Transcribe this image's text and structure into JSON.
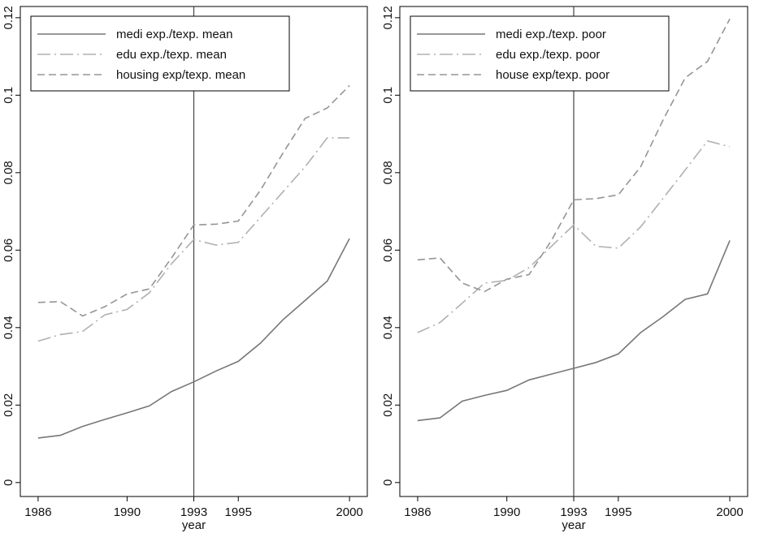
{
  "chart_data": [
    {
      "type": "line",
      "x": [
        1986,
        1987,
        1988,
        1989,
        1990,
        1991,
        1992,
        1993,
        1994,
        1995,
        1996,
        1997,
        1998,
        1999,
        2000
      ],
      "x_label": "year",
      "xlim": [
        1985.2,
        2000.8
      ],
      "xticks": [
        1986,
        1990,
        1993,
        1995,
        2000
      ],
      "ylim": [
        -0.0036,
        0.1229
      ],
      "yticks": [
        0,
        0.02,
        0.04,
        0.06,
        0.08,
        0.1,
        0.12
      ],
      "vline": 1993,
      "legend": "top-left",
      "series": [
        {
          "name": "medi exp./texp. mean",
          "color": "#777777",
          "dash": "solid",
          "values": [
            0.0115,
            0.0122,
            0.0145,
            0.0163,
            0.018,
            0.0198,
            0.0235,
            0.026,
            0.0288,
            0.0313,
            0.036,
            0.042,
            0.047,
            0.052,
            0.063
          ]
        },
        {
          "name": "edu exp./texp. mean",
          "color": "#b0b0b0",
          "dash": "longdashdot",
          "values": [
            0.0365,
            0.0382,
            0.039,
            0.0433,
            0.0447,
            0.049,
            0.0565,
            0.0627,
            0.0613,
            0.062,
            0.0685,
            0.075,
            0.0815,
            0.089,
            0.089
          ]
        },
        {
          "name": "housing exp/texp. mean",
          "color": "#959595",
          "dash": "dash",
          "values": [
            0.0465,
            0.0467,
            0.043,
            0.0454,
            0.0487,
            0.05,
            0.058,
            0.0665,
            0.0667,
            0.0675,
            0.0755,
            0.085,
            0.094,
            0.0967,
            0.1025
          ]
        }
      ]
    },
    {
      "type": "line",
      "x": [
        1986,
        1987,
        1988,
        1989,
        1990,
        1991,
        1992,
        1993,
        1994,
        1995,
        1996,
        1997,
        1998,
        1999,
        2000
      ],
      "x_label": "year",
      "xlim": [
        1985.2,
        2000.8
      ],
      "xticks": [
        1986,
        1990,
        1993,
        1995,
        2000
      ],
      "ylim": [
        -0.0036,
        0.1229
      ],
      "yticks": [
        0,
        0.02,
        0.04,
        0.06,
        0.08,
        0.1,
        0.12
      ],
      "vline": 1993,
      "legend": "top-left",
      "series": [
        {
          "name": "medi exp./texp. poor",
          "color": "#777777",
          "dash": "solid",
          "values": [
            0.016,
            0.0167,
            0.021,
            0.0225,
            0.0238,
            0.0265,
            0.028,
            0.0295,
            0.031,
            0.0332,
            0.0387,
            0.0428,
            0.0473,
            0.0487,
            0.0625
          ]
        },
        {
          "name": "edu exp./texp. poor",
          "color": "#b0b0b0",
          "dash": "longdashdot",
          "values": [
            0.0387,
            0.0413,
            0.0463,
            0.0515,
            0.0522,
            0.0555,
            0.061,
            0.0665,
            0.061,
            0.0605,
            0.066,
            0.0733,
            0.0807,
            0.0882,
            0.0867
          ]
        },
        {
          "name": "house exp/texp. poor",
          "color": "#959595",
          "dash": "dash",
          "values": [
            0.0575,
            0.058,
            0.0515,
            0.0493,
            0.0525,
            0.0537,
            0.0625,
            0.073,
            0.0733,
            0.0743,
            0.0815,
            0.0935,
            0.1045,
            0.1087,
            0.1197
          ]
        }
      ]
    }
  ]
}
